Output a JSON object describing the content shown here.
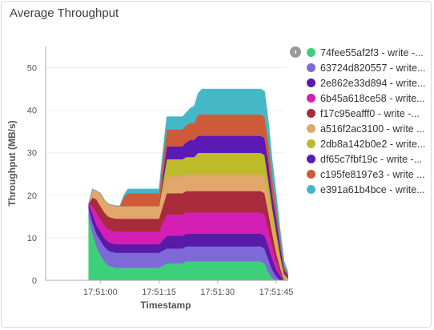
{
  "panel": {
    "title": "Average Throughput"
  },
  "legend_toggle_icon": "chevron-right-icon",
  "chart_data": {
    "type": "area",
    "stacked": true,
    "xlabel": "Timestamp",
    "ylabel": "Throughput (MB/s)",
    "ylim": [
      0,
      55
    ],
    "yticks": [
      0,
      10,
      20,
      30,
      40,
      50
    ],
    "xticks": [
      "17:51:00",
      "17:51:15",
      "17:51:30",
      "17:51:45"
    ],
    "xtick_seconds": [
      0,
      15,
      30,
      45
    ],
    "x_seconds_range": [
      -14,
      45
    ],
    "legend_position": "right",
    "x_seconds": [
      -3,
      -2,
      -1,
      0,
      1,
      2,
      3,
      4,
      5,
      6,
      7,
      8,
      9,
      10,
      11,
      12,
      13,
      14,
      15,
      16,
      17,
      18,
      19,
      20,
      21,
      22,
      23,
      24,
      25,
      26,
      27,
      28,
      29,
      30,
      31,
      32,
      33,
      34,
      35,
      36,
      37,
      38,
      39,
      40,
      41,
      42,
      43,
      44,
      45,
      46,
      47,
      48
    ],
    "series": [
      {
        "name": "74fee55af2f3 - write -...",
        "color": "#3ecf7a",
        "values": [
          15,
          11,
          8,
          6,
          4.5,
          3.5,
          3.2,
          3,
          3,
          3,
          3,
          3,
          3,
          3,
          3,
          3,
          3,
          3,
          3,
          3.5,
          4,
          4,
          4,
          4,
          4,
          4.5,
          4.5,
          4.5,
          4.5,
          4.5,
          4.5,
          4.5,
          4.5,
          4.5,
          4.5,
          4.5,
          4.5,
          4.5,
          4.5,
          4.5,
          4.5,
          4.5,
          4.5,
          4.5,
          4.5,
          4,
          2,
          0.5,
          0,
          0,
          0,
          0
        ]
      },
      {
        "name": "63724d820557 - write...",
        "color": "#7d6ad8",
        "values": [
          2,
          2.5,
          3,
          3.5,
          3.5,
          3.5,
          3.5,
          3.5,
          3.5,
          3.5,
          3.5,
          3.5,
          3.5,
          3.5,
          3.5,
          3.5,
          3.5,
          3.5,
          3.5,
          3.5,
          3.5,
          3.5,
          3.5,
          3.5,
          3.5,
          3.5,
          3.5,
          3.5,
          3.5,
          3.5,
          3.5,
          3.5,
          3.5,
          3.5,
          3.5,
          3.5,
          3.5,
          3.5,
          3.5,
          3.5,
          3.5,
          3.5,
          3.5,
          3.5,
          3.5,
          3.5,
          3,
          2,
          1,
          0,
          0,
          0
        ]
      },
      {
        "name": "2e862e33d894 - write...",
        "color": "#5a1aa8",
        "values": [
          1,
          2,
          2,
          2,
          2,
          2,
          2,
          2,
          2,
          2,
          2,
          2,
          2,
          2,
          2,
          2,
          2,
          2,
          2,
          2.5,
          3,
          3,
          3,
          3,
          3,
          3,
          3,
          3,
          3,
          3,
          3,
          3,
          3,
          3,
          3,
          3,
          3,
          3,
          3,
          3,
          3,
          3,
          3,
          3,
          3,
          3,
          3,
          2.5,
          1.5,
          1,
          0,
          0
        ]
      },
      {
        "name": "6b45a618ce58 - write...",
        "color": "#d41fb4",
        "values": [
          0,
          2,
          3,
          3,
          3,
          3,
          3,
          3,
          3,
          3,
          3,
          3,
          3,
          3,
          3,
          3,
          3,
          3,
          3,
          4,
          5,
          5,
          5,
          5,
          5,
          5,
          5,
          5,
          5,
          5,
          5,
          5,
          5,
          5,
          5,
          5,
          5,
          5,
          5,
          5,
          5,
          5,
          5,
          5,
          5,
          5,
          4,
          3,
          2,
          1,
          0,
          0
        ]
      },
      {
        "name": "f17c95eafff0 - write -...",
        "color": "#a92a3a",
        "values": [
          0,
          2,
          3,
          3,
          3,
          3,
          3,
          3,
          3,
          3,
          3,
          3,
          3,
          3,
          3,
          3,
          3,
          3,
          3,
          4,
          5,
          5,
          5,
          5,
          5,
          5,
          5,
          5,
          5,
          5,
          5,
          5,
          5,
          5,
          5,
          5,
          5,
          5,
          5,
          5,
          5,
          5,
          5,
          5,
          5,
          5,
          4,
          3,
          2,
          1,
          0,
          0
        ]
      },
      {
        "name": "a516f2ac3100 - write ...",
        "color": "#e2a76a",
        "values": [
          0,
          2,
          2,
          3,
          3,
          3,
          3,
          3,
          3,
          3,
          3,
          3,
          3,
          3,
          3,
          3,
          3,
          3,
          3,
          3.5,
          4,
          4,
          4,
          4,
          4,
          4,
          4,
          4,
          4,
          4,
          4,
          4,
          4,
          4,
          4,
          4,
          4,
          4,
          4,
          4,
          4,
          4,
          4,
          4,
          4,
          4,
          3.5,
          3,
          2,
          1,
          0.5,
          0
        ]
      },
      {
        "name": "2db8a142b0e2 - write...",
        "color": "#bdbb2a",
        "values": [
          0,
          0,
          0,
          0,
          0,
          0,
          0,
          0,
          0,
          0,
          0,
          0,
          0,
          0,
          0,
          0,
          0,
          0,
          0,
          2,
          4,
          4,
          4,
          4,
          4,
          4,
          4,
          4,
          5,
          5,
          5,
          5,
          5,
          5,
          5,
          5,
          5,
          5,
          5,
          5,
          5,
          5,
          5,
          5,
          5,
          5,
          4,
          3,
          3,
          2,
          1,
          0.5
        ]
      },
      {
        "name": "df65c7fbf19c - write -...",
        "color": "#5b1ab5",
        "values": [
          0,
          0,
          0,
          0,
          0,
          0,
          0,
          0,
          0,
          0,
          0,
          0,
          0,
          0,
          0,
          0,
          0,
          0,
          0,
          1.5,
          3,
          3,
          3,
          3,
          3,
          3.5,
          4,
          4,
          4,
          4,
          4,
          4,
          4,
          4,
          4,
          4,
          4,
          4,
          4,
          4,
          4,
          4,
          4,
          4,
          4,
          4,
          4,
          3,
          3,
          2,
          1,
          0.5
        ]
      },
      {
        "name": "c195fe8197e3 - write ...",
        "color": "#cf5a3a",
        "values": [
          0,
          0,
          0,
          0,
          0,
          0,
          0,
          0,
          0,
          2,
          3,
          3,
          3,
          3,
          3,
          3,
          3,
          3,
          3,
          4,
          4,
          4,
          4,
          4,
          4,
          4,
          4,
          4,
          5,
          5,
          5,
          5,
          5,
          5,
          5,
          5,
          5,
          5,
          5,
          5,
          5,
          5,
          5,
          5,
          5,
          5,
          5,
          4,
          3,
          2,
          1,
          0.5
        ]
      },
      {
        "name": "e391a61b4bce - write...",
        "color": "#45b7c7",
        "values": [
          0,
          0,
          0,
          0,
          0,
          0,
          0,
          0,
          0,
          0.5,
          1,
          1,
          1,
          1,
          1,
          1,
          1,
          1,
          1,
          2,
          3,
          3,
          3,
          3,
          3,
          3,
          3.5,
          4,
          5,
          6,
          6,
          6,
          6,
          6,
          6,
          6,
          6,
          6,
          6,
          6,
          6,
          6,
          6,
          6,
          6,
          6,
          5,
          4,
          3,
          2,
          1,
          0.5
        ]
      }
    ]
  }
}
